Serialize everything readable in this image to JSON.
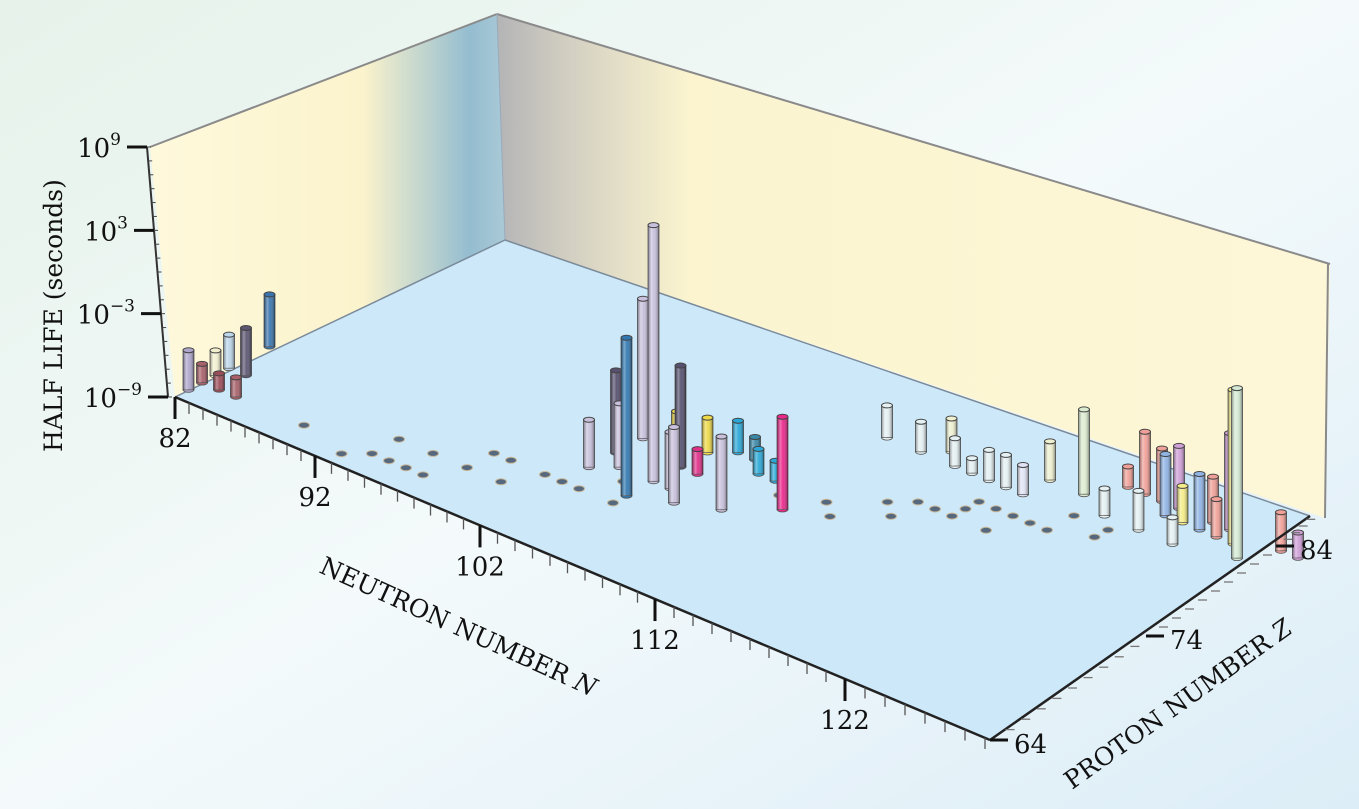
{
  "chart_data": {
    "type": "bar3d",
    "y_axis": {
      "label": "HALF LIFE (seconds)",
      "scale": "log",
      "ylim": [
        -9,
        9
      ],
      "ticks": [
        {
          "base": "10",
          "exp": "9",
          "value": 9
        },
        {
          "base": "10",
          "exp": "3",
          "value": 3
        },
        {
          "base": "10",
          "exp": "−3",
          "value": -3
        },
        {
          "base": "10",
          "exp": "−9",
          "value": -9
        }
      ]
    },
    "x_axis": {
      "label": "NEUTRON NUMBER",
      "symbol": "N",
      "xlim": [
        82,
        129
      ],
      "ticks": [
        "82",
        "92",
        "102",
        "112",
        "122"
      ]
    },
    "z_axis": {
      "label": "PROTON NUMBER",
      "symbol": "Z",
      "zlim": [
        64,
        88
      ],
      "ticks": [
        "64",
        "74",
        "84"
      ]
    },
    "bars_note_units": "N, Z, log10 half-life (s)",
    "bars": [
      {
        "N": 82,
        "Z": 65,
        "log_t": -6.1,
        "color": "#b0a6cc"
      },
      {
        "N": 82,
        "Z": 66,
        "log_t": -7.6,
        "color": "#a8606a"
      },
      {
        "N": 82,
        "Z": 67,
        "log_t": -7.1,
        "color": "#f2efcf"
      },
      {
        "N": 82,
        "Z": 68,
        "log_t": -6.4,
        "color": "#bcd6ea"
      },
      {
        "N": 83,
        "Z": 66,
        "log_t": -7.8,
        "color": "#9c4c58"
      },
      {
        "N": 83,
        "Z": 68,
        "log_t": -5.4,
        "color": "#5c5672"
      },
      {
        "N": 84,
        "Z": 66,
        "log_t": -7.6,
        "color": "#a8606a"
      },
      {
        "N": 82,
        "Z": 71,
        "log_t": -4.7,
        "color": "#3a74ac"
      },
      {
        "N": 100,
        "Z": 72,
        "log_t": -6.1,
        "color": "#c8c0dc"
      },
      {
        "N": 100,
        "Z": 74,
        "log_t": -3.8,
        "color": "#56506e"
      },
      {
        "N": 101,
        "Z": 73,
        "log_t": -5.1,
        "color": "#c8c0dc"
      },
      {
        "N": 100,
        "Z": 76,
        "log_t": 0.1,
        "color": "#c8c0dc"
      },
      {
        "N": 103,
        "Z": 71,
        "log_t": 0.1,
        "color": "#3278b0"
      },
      {
        "N": 103,
        "Z": 73,
        "log_t": 6.2,
        "color": "#c8c0dc"
      },
      {
        "N": 103,
        "Z": 75,
        "log_t": -2.8,
        "color": "#56506e"
      },
      {
        "N": 102,
        "Z": 76,
        "log_t": -6.4,
        "color": "#ecd848"
      },
      {
        "N": 104,
        "Z": 73,
        "log_t": -5.7,
        "color": "#c8c0dc"
      },
      {
        "N": 105,
        "Z": 72,
        "log_t": -4.7,
        "color": "#c8c0dc"
      },
      {
        "N": 103,
        "Z": 77,
        "log_t": -6.8,
        "color": "#ecd848"
      },
      {
        "N": 104,
        "Z": 75,
        "log_t": -7.5,
        "color": "#e0308a"
      },
      {
        "N": 104,
        "Z": 78,
        "log_t": -7.0,
        "color": "#2aa8d8"
      },
      {
        "N": 107,
        "Z": 73,
        "log_t": -4.9,
        "color": "#c8c0dc"
      },
      {
        "N": 105,
        "Z": 78,
        "log_t": -7.6,
        "color": "#3a88a8"
      },
      {
        "N": 106,
        "Z": 77,
        "log_t": -7.5,
        "color": "#2aa8d8"
      },
      {
        "N": 107,
        "Z": 77,
        "log_t": -7.8,
        "color": "#2aa8d8"
      },
      {
        "N": 109,
        "Z": 75,
        "log_t": -3.8,
        "color": "#e8288a"
      },
      {
        "N": 108,
        "Z": 84,
        "log_t": -6.9,
        "color": "#e4f0f2"
      },
      {
        "N": 110,
        "Z": 84,
        "log_t": -7.1,
        "color": "#e4f0f2"
      },
      {
        "N": 111,
        "Z": 85,
        "log_t": -6.9,
        "color": "#eef0d0"
      },
      {
        "N": 112,
        "Z": 84,
        "log_t": -7.3,
        "color": "#e4f0f2"
      },
      {
        "N": 113,
        "Z": 84,
        "log_t": -8.1,
        "color": "#e4f0f2"
      },
      {
        "N": 114,
        "Z": 84,
        "log_t": -7.2,
        "color": "#e4f0f2"
      },
      {
        "N": 115,
        "Z": 84,
        "log_t": -7.1,
        "color": "#e4f0f2"
      },
      {
        "N": 116,
        "Z": 84,
        "log_t": -7.3,
        "color": "#e0e4f4"
      },
      {
        "N": 116,
        "Z": 86,
        "log_t": -6.7,
        "color": "#eef0d0"
      },
      {
        "N": 118,
        "Z": 86,
        "log_t": -4.1,
        "color": "#dcecd0"
      },
      {
        "N": 120,
        "Z": 85,
        "log_t": -7.5,
        "color": "#e4f0f2"
      },
      {
        "N": 122,
        "Z": 85,
        "log_t": -6.9,
        "color": "#e4f0f2"
      },
      {
        "N": 124,
        "Z": 85,
        "log_t": -7.6,
        "color": "#e4f0f2"
      },
      {
        "N": 119,
        "Z": 88,
        "log_t": -7.8,
        "color": "#f0a098"
      },
      {
        "N": 120,
        "Z": 88,
        "log_t": -5.4,
        "color": "#f0a098"
      },
      {
        "N": 121,
        "Z": 88,
        "log_t": -6.0,
        "color": "#f0a098"
      },
      {
        "N": 122,
        "Z": 87,
        "log_t": -5.6,
        "color": "#90b4e4"
      },
      {
        "N": 123,
        "Z": 87,
        "log_t": -7.0,
        "color": "#f4ec88"
      },
      {
        "N": 124,
        "Z": 88,
        "log_t": -6.5,
        "color": "#f0a098"
      },
      {
        "N": 122,
        "Z": 88,
        "log_t": -5.5,
        "color": "#d0a0d8"
      },
      {
        "N": 124,
        "Z": 87,
        "log_t": -6.0,
        "color": "#90b4e4"
      },
      {
        "N": 125,
        "Z": 87,
        "log_t": -7.0,
        "color": "#f0a098"
      },
      {
        "N": 125,
        "Z": 88,
        "log_t": -3.8,
        "color": "#d0a0d8"
      },
      {
        "N": 126,
        "Z": 87,
        "log_t": -0.9,
        "color": "#f6ee90"
      },
      {
        "N": 127,
        "Z": 86,
        "log_t": -0.3,
        "color": "#d4ead4"
      },
      {
        "N": 128,
        "Z": 88,
        "log_t": -7.0,
        "color": "#f0a098"
      },
      {
        "N": 129,
        "Z": 88,
        "log_t": -7.7,
        "color": "#d0a0d8"
      }
    ],
    "floor_markers": [
      {
        "N": 88,
        "Z": 66
      },
      {
        "N": 91,
        "Z": 65
      },
      {
        "N": 92,
        "Z": 66
      },
      {
        "N": 93,
        "Z": 66
      },
      {
        "N": 92,
        "Z": 68
      },
      {
        "N": 94,
        "Z": 66
      },
      {
        "N": 95,
        "Z": 66
      },
      {
        "N": 94,
        "Z": 68
      },
      {
        "N": 96,
        "Z": 68
      },
      {
        "N": 96,
        "Z": 70
      },
      {
        "N": 98,
        "Z": 68
      },
      {
        "N": 97,
        "Z": 70
      },
      {
        "N": 99,
        "Z": 70
      },
      {
        "N": 100,
        "Z": 70
      },
      {
        "N": 101,
        "Z": 70
      },
      {
        "N": 103,
        "Z": 70
      },
      {
        "N": 102,
        "Z": 72
      },
      {
        "N": 113,
        "Z": 78
      },
      {
        "N": 112,
        "Z": 79
      },
      {
        "N": 113,
        "Z": 80
      },
      {
        "N": 114,
        "Z": 80
      },
      {
        "N": 115,
        "Z": 80
      },
      {
        "N": 115,
        "Z": 81
      },
      {
        "N": 115,
        "Z": 82
      },
      {
        "N": 116,
        "Z": 82
      },
      {
        "N": 117,
        "Z": 82
      },
      {
        "N": 118,
        "Z": 82
      },
      {
        "N": 119,
        "Z": 82
      },
      {
        "N": 119,
        "Z": 84
      },
      {
        "N": 117,
        "Z": 80
      },
      {
        "N": 121,
        "Z": 83
      },
      {
        "N": 121,
        "Z": 84
      },
      {
        "N": 108,
        "Z": 76
      },
      {
        "N": 110,
        "Z": 77
      },
      {
        "N": 111,
        "Z": 76
      }
    ],
    "colors": {
      "floor": "#cde8f8",
      "wall": "#fcf6d4",
      "axis": "#1a1a1a"
    }
  }
}
